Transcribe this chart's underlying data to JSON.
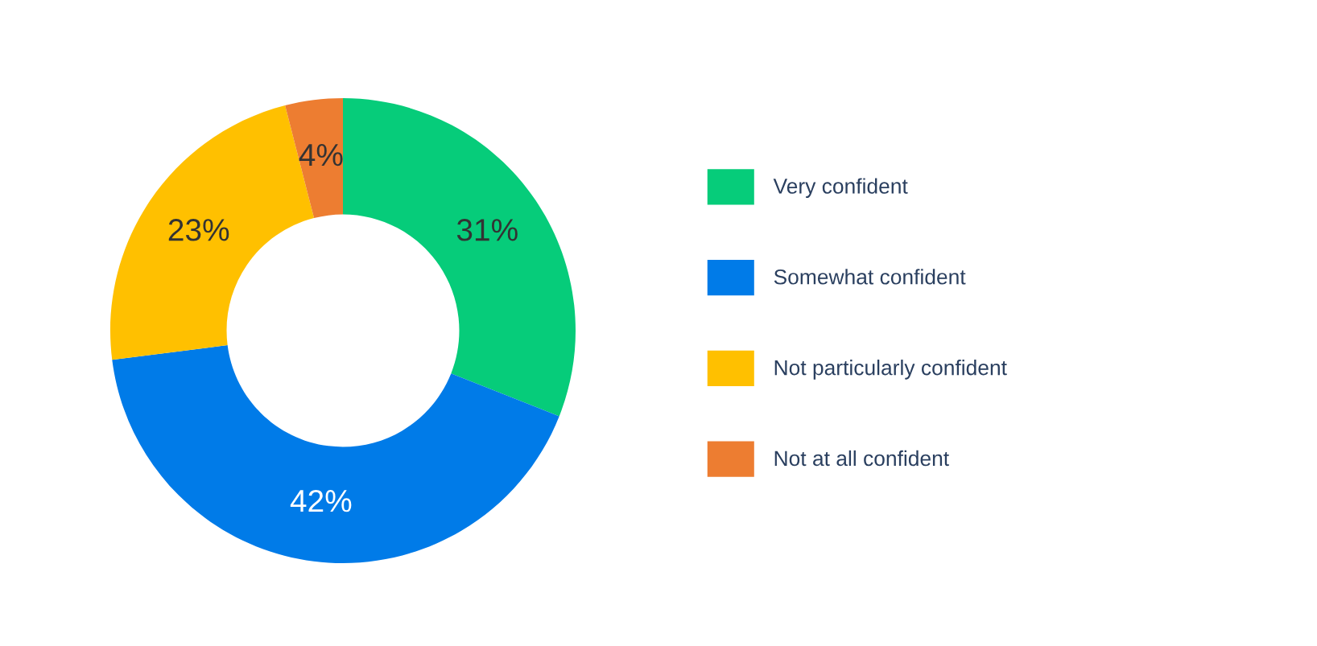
{
  "chart_data": {
    "type": "donut",
    "categories": [
      "Very confident",
      "Somewhat confident",
      "Not particularly confident",
      "Not at all confident"
    ],
    "values": [
      31,
      42,
      23,
      4
    ],
    "colors": [
      "#06cc7a",
      "#007be8",
      "#ffc000",
      "#ed7d31"
    ],
    "value_labels": [
      "31%",
      "42%",
      "23%",
      "4%"
    ],
    "legend": "right"
  }
}
